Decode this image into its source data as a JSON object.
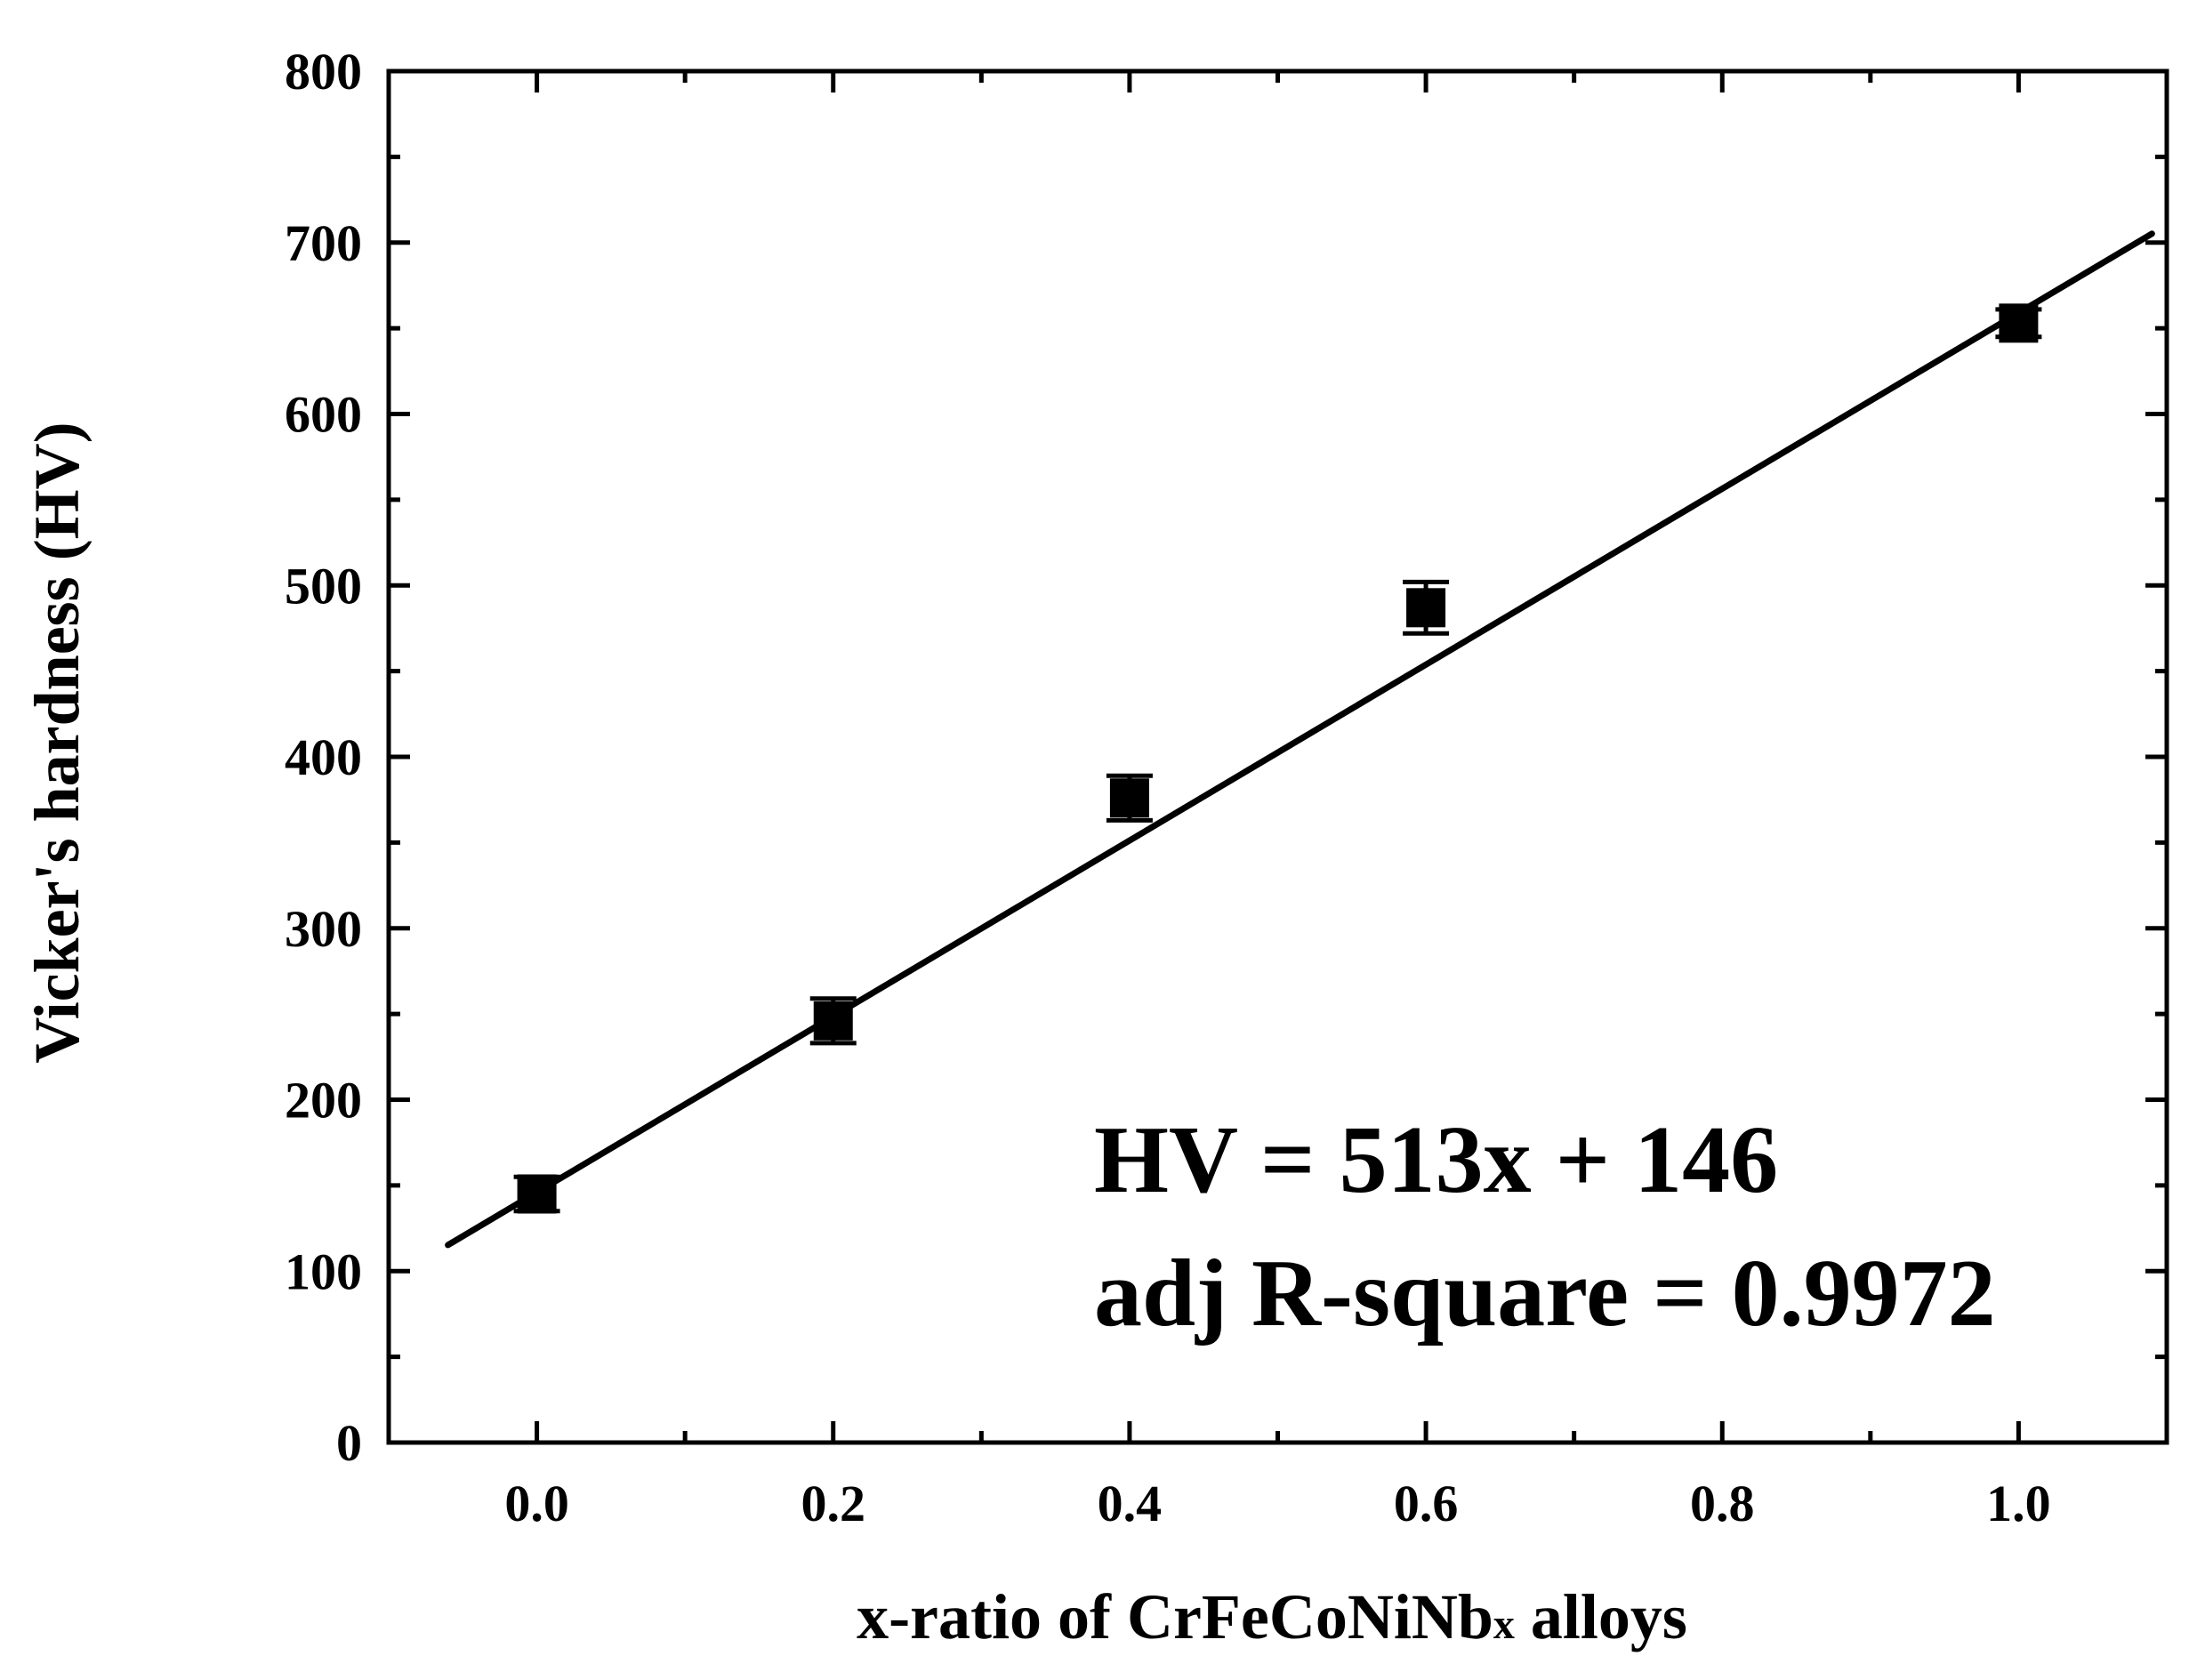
{
  "chart_data": {
    "type": "scatter",
    "xlabel": {
      "prefix": "x-ratio of CrFeCoNiNb",
      "subscript": "x",
      "suffix": " alloys"
    },
    "ylabel": "Vicker's hardness (HV)",
    "xlim": [
      -0.1,
      1.1
    ],
    "ylim": [
      0,
      800
    ],
    "x_ticks": [
      0.0,
      0.2,
      0.4,
      0.6,
      0.8,
      1.0
    ],
    "x_tick_labels": [
      "0.0",
      "0.2",
      "0.4",
      "0.6",
      "0.8",
      "1.0"
    ],
    "x_minor_ticks": [
      0.1,
      0.3,
      0.5,
      0.7,
      0.9
    ],
    "y_ticks": [
      0,
      100,
      200,
      300,
      400,
      500,
      600,
      700,
      800
    ],
    "y_tick_labels": [
      "0",
      "100",
      "200",
      "300",
      "400",
      "500",
      "600",
      "700",
      "800"
    ],
    "y_minor_ticks": [
      50,
      150,
      250,
      350,
      450,
      550,
      650,
      750
    ],
    "grid": false,
    "points": [
      {
        "x": 0.0,
        "y": 145,
        "err": 10
      },
      {
        "x": 0.2,
        "y": 246,
        "err": 13
      },
      {
        "x": 0.4,
        "y": 376,
        "err": 13
      },
      {
        "x": 0.6,
        "y": 487,
        "err": 15
      },
      {
        "x": 1.0,
        "y": 653,
        "err": 8
      }
    ],
    "fit": {
      "slope": 513,
      "intercept": 146,
      "x_range": [
        -0.06,
        1.09
      ]
    },
    "annotations": [
      "HV = 513x + 146",
      "adj R-square = 0.9972"
    ]
  }
}
